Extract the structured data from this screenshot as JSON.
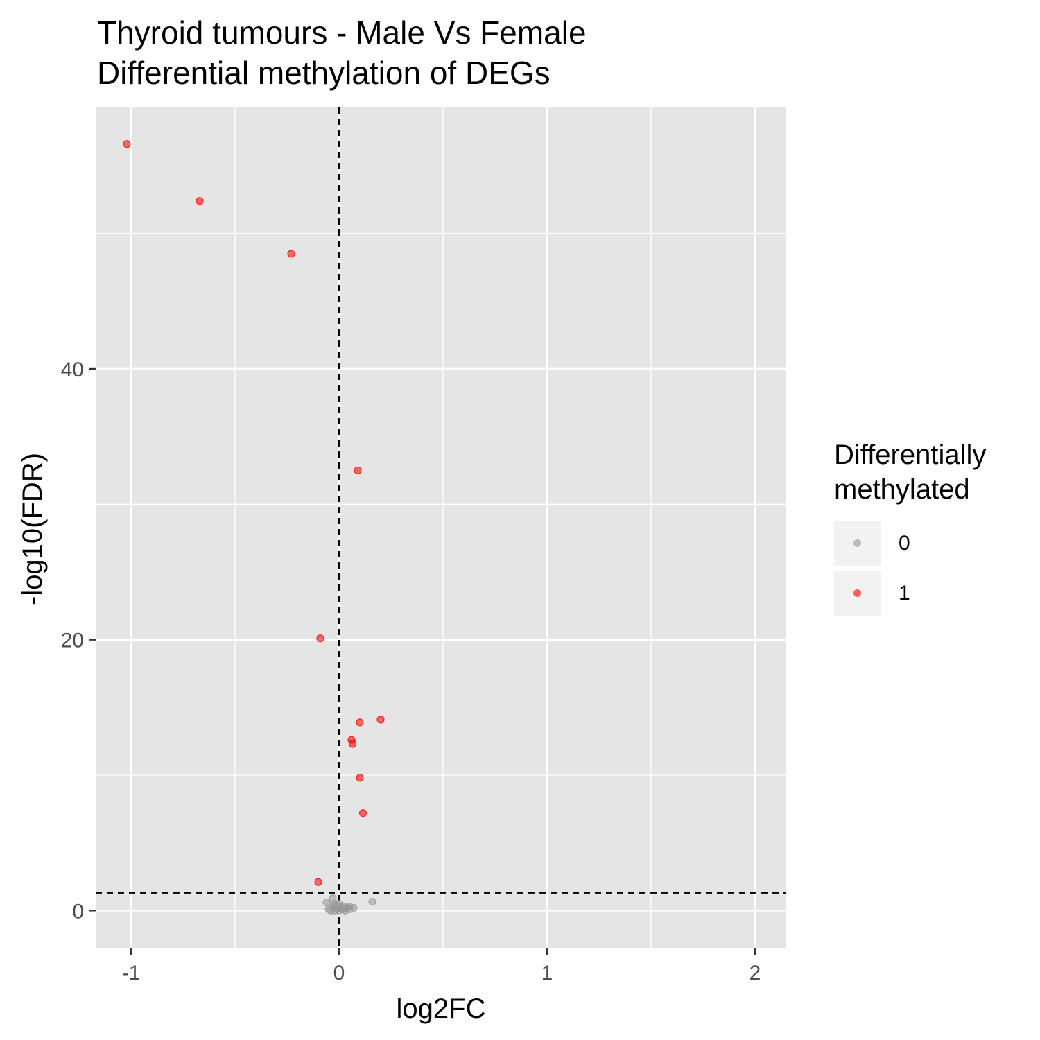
{
  "chart_data": {
    "type": "scatter",
    "title": "Thyroid tumours - Male Vs Female",
    "subtitle": "Differential methylation of DEGs",
    "xlabel": "log2FC",
    "ylabel": "-log10(FDR)",
    "xlim": [
      -1.17,
      2.15
    ],
    "ylim": [
      -2.8,
      59.3
    ],
    "x_ticks": [
      -1,
      0,
      1,
      2
    ],
    "x_tick_labels": [
      "-1",
      "0",
      "1",
      "2"
    ],
    "y_ticks": [
      0,
      20,
      40
    ],
    "y_tick_labels": [
      "0",
      "20",
      "40"
    ],
    "grid": true,
    "reference_lines": {
      "vline_x": 0,
      "hline_y": 1.3
    },
    "legend": {
      "title_line1": "Differentially",
      "title_line2": "methylated",
      "position": "right",
      "entries": [
        {
          "label": "0",
          "color": "#999999"
        },
        {
          "label": "1",
          "color": "#ff0000"
        }
      ]
    },
    "series": [
      {
        "name": "0",
        "color": "#999999",
        "points": [
          [
            -0.06,
            0.6
          ],
          [
            -0.03,
            0.9
          ],
          [
            -0.02,
            0.5
          ],
          [
            -0.05,
            0.1
          ],
          [
            -0.04,
            0.0
          ],
          [
            -0.03,
            0.3
          ],
          [
            -0.02,
            0.2
          ],
          [
            -0.01,
            0.1
          ],
          [
            0.0,
            0.0
          ],
          [
            0.01,
            0.2
          ],
          [
            0.02,
            0.1
          ],
          [
            0.03,
            0.0
          ],
          [
            0.04,
            0.2
          ],
          [
            0.05,
            0.1
          ],
          [
            -0.01,
            0.4
          ],
          [
            0.0,
            0.5
          ],
          [
            0.02,
            0.3
          ],
          [
            0.05,
            0.3
          ],
          [
            0.07,
            0.2
          ],
          [
            -0.02,
            0.0
          ],
          [
            0.03,
            0.15
          ],
          [
            0.16,
            0.65
          ]
        ]
      },
      {
        "name": "1",
        "color": "#ff0000",
        "points": [
          [
            -1.02,
            56.6
          ],
          [
            -0.67,
            52.4
          ],
          [
            -0.23,
            48.5
          ],
          [
            0.09,
            32.5
          ],
          [
            -0.09,
            20.1
          ],
          [
            0.2,
            14.1
          ],
          [
            0.1,
            13.9
          ],
          [
            0.06,
            12.6
          ],
          [
            0.065,
            12.3
          ],
          [
            0.1,
            9.8
          ],
          [
            0.115,
            7.2
          ],
          [
            -0.1,
            2.1
          ]
        ]
      }
    ]
  }
}
